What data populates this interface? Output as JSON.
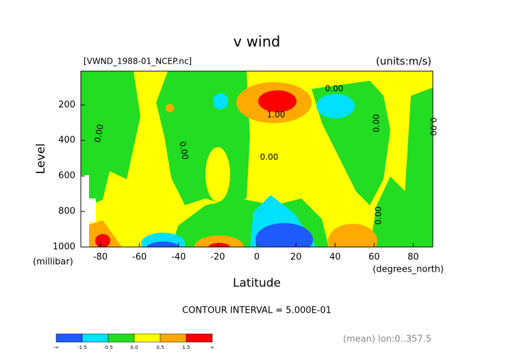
{
  "chart_data": {
    "type": "contour",
    "title": "v wind",
    "file_label": "[VWND_1988-01_NCEP.nc]",
    "units_label": "(units:m/s)",
    "ylabel": "Level",
    "yunits": "(millibar)",
    "xlabel": "Latitude",
    "xunits": "(degrees_north)",
    "contour_interval": "CONTOUR INTERVAL = 5.000E-01",
    "footnote": "(mean) lon:0..357.5",
    "xlim": [
      -90,
      90
    ],
    "xticks": [
      -80,
      -60,
      -40,
      -20,
      0,
      20,
      40,
      60,
      80
    ],
    "ylim": [
      1000,
      10
    ],
    "yticks": [
      200,
      400,
      600,
      800,
      1000
    ],
    "contour_labels": [
      "0.00",
      "0.00",
      "0.00",
      "0.00",
      "0.00",
      "0.00",
      "0.00",
      "1.00"
    ],
    "colorbar": {
      "labels": [
        "-∞",
        "-1.5",
        "-0.5",
        "0.0",
        "0.5",
        "1.5",
        "∞"
      ],
      "colors": [
        "#1e5aff",
        "#00e1ff",
        "#22dd22",
        "#ffff00",
        "#ffaa00",
        "#ff0000"
      ]
    }
  }
}
